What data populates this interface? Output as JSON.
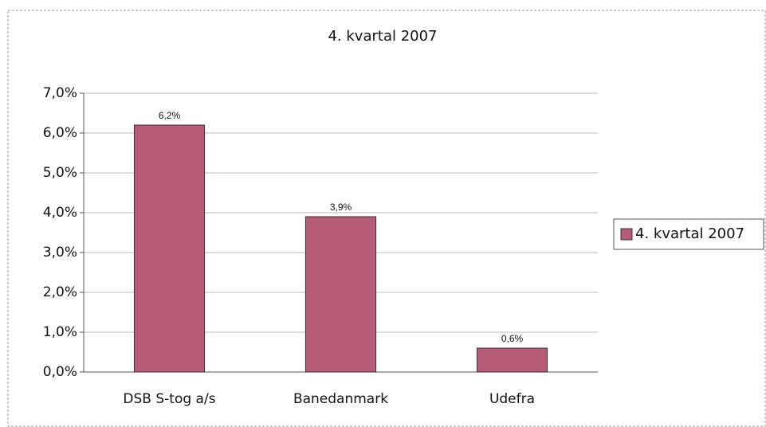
{
  "chart_data": {
    "type": "bar",
    "title": "4. kvartal 2007",
    "categories": [
      "DSB S-tog a/s",
      "Banedanmark",
      "Udefra"
    ],
    "series": [
      {
        "name": "4. kvartal 2007",
        "color": "#b65b78",
        "values": [
          6.2,
          3.9,
          0.6
        ],
        "value_labels": [
          "6,2%",
          "3,9%",
          "0,6%"
        ]
      }
    ],
    "ylim": [
      0,
      7
    ],
    "yticks": [
      {
        "value": 0,
        "label": "0,0%"
      },
      {
        "value": 1,
        "label": "1,0%"
      },
      {
        "value": 2,
        "label": "2,0%"
      },
      {
        "value": 3,
        "label": "3,0%"
      },
      {
        "value": 4,
        "label": "4,0%"
      },
      {
        "value": 5,
        "label": "5,0%"
      },
      {
        "value": 6,
        "label": "6,0%"
      },
      {
        "value": 7,
        "label": "7,0%"
      }
    ],
    "grid": true,
    "legend": "right"
  }
}
